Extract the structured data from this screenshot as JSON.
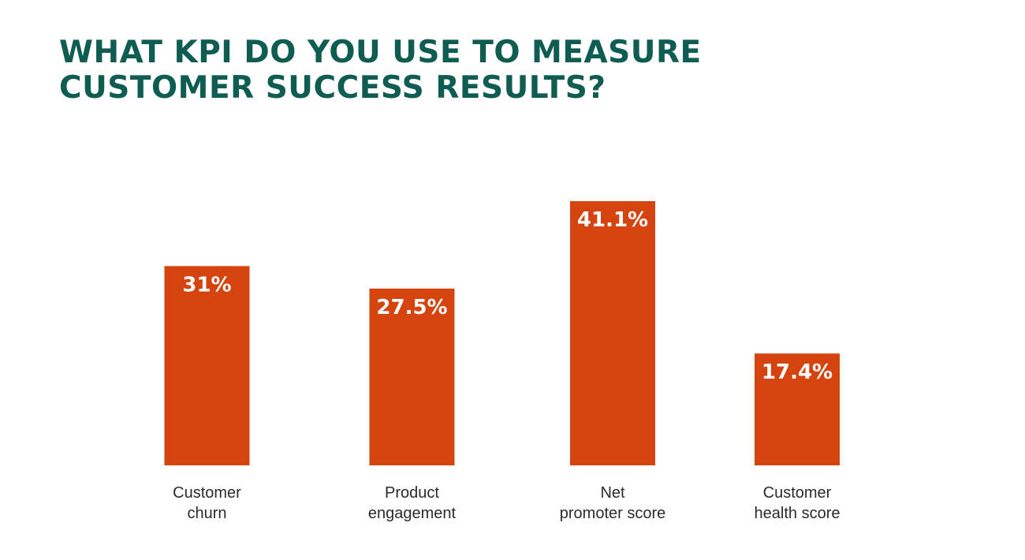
{
  "title": {
    "line1": "WHAT KPI DO YOU USE TO MEASURE",
    "line2": "CUSTOMER SUCCESS RESULTS?"
  },
  "colors": {
    "title": "#0f5c53",
    "bar": "#d5440f",
    "value_label": "#ffffff",
    "category_label": "#2b2b2b"
  },
  "chart_data": {
    "type": "bar",
    "categories": [
      [
        "Customer",
        "churn"
      ],
      [
        "Product",
        "engagement"
      ],
      [
        "Net",
        "promoter score"
      ],
      [
        "Customer",
        "health score"
      ]
    ],
    "values": [
      31,
      27.5,
      41.1,
      17.4
    ],
    "value_labels": [
      "31%",
      "27.5%",
      "41.1%",
      "17.4%"
    ],
    "title": "WHAT KPI DO YOU USE TO MEASURE CUSTOMER SUCCESS RESULTS?",
    "xlabel": "",
    "ylabel": "",
    "grid": false,
    "legend": "none"
  }
}
